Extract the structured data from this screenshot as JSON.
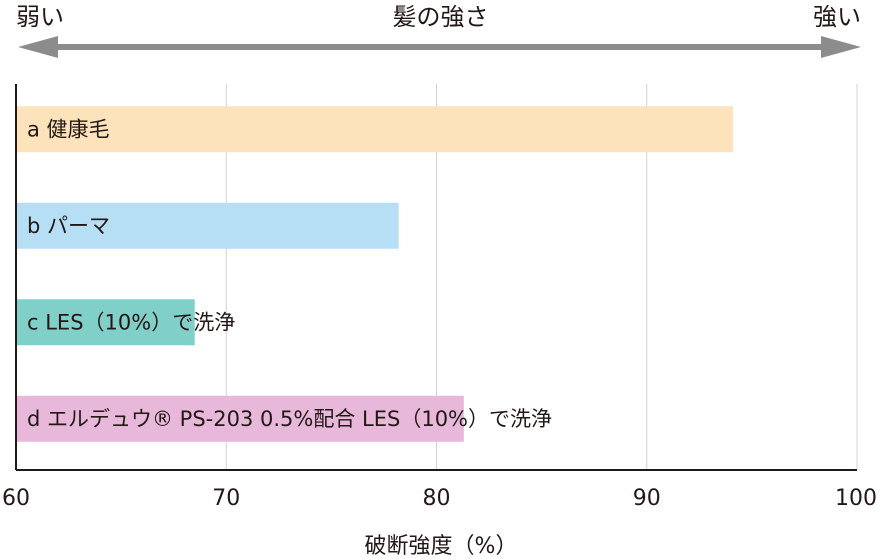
{
  "header": {
    "weak": "弱い",
    "title": "髪の強さ",
    "strong": "強い"
  },
  "colors": {
    "arrow": "#8c8c8c",
    "grid": "#d3d3d3",
    "axis": "#231815"
  },
  "chart_data": {
    "type": "bar",
    "orientation": "horizontal",
    "categories": [
      "a 健康毛",
      "b パーマ",
      "c LES（10%）で洗浄",
      "d エルデュウ® PS-203 0.5%配合 LES（10%）で洗浄"
    ],
    "values": [
      94.1,
      78.2,
      68.5,
      81.3
    ],
    "colors": [
      "#fde3bb",
      "#b6def4",
      "#80cfc8",
      "#e7b8da"
    ],
    "xlabel": "破断強度（%）",
    "xlim": [
      60,
      100
    ],
    "xticks": [
      60,
      70,
      80,
      90,
      100
    ],
    "grid": true
  }
}
